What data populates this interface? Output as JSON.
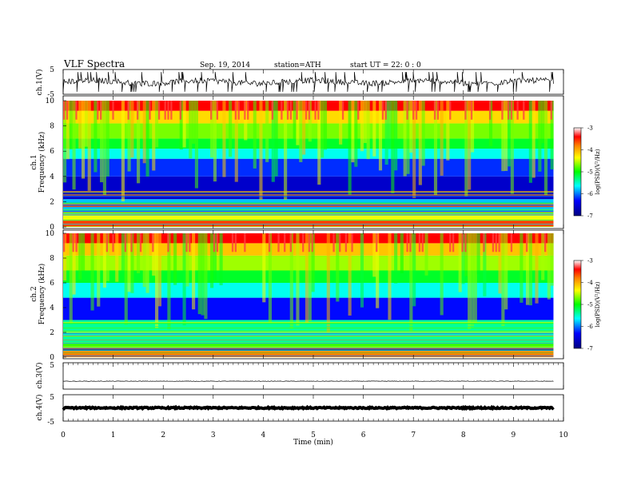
{
  "header": {
    "title": "VLF  Spectra",
    "date": "Sep. 19, 2014",
    "station": "station=ATH",
    "start": "start  UT  =   22: 0  : 0"
  },
  "colors": {
    "low": "#000080",
    "blue": "#0000ff",
    "cyan": "#00ffff",
    "green": "#00ff00",
    "yellow": "#ffff00",
    "orange": "#ff8000",
    "red": "#ff0000",
    "high": "#ffffff"
  },
  "chart_data": [
    {
      "type": "line",
      "panel": "ch1-waveform",
      "ylabel": "ch.1(V)",
      "yticks": [
        "5",
        "-5"
      ],
      "ylim": [
        -5,
        5
      ],
      "xlim": [
        0,
        10
      ],
      "series": [
        {
          "x": [
            0,
            9.8
          ],
          "mean": 0,
          "noise_amplitude": 1.2
        }
      ]
    },
    {
      "type": "heatmap",
      "panel": "ch1-spectrogram",
      "ylabel": "ch.1\nFrequency (kHz)",
      "yticks": [
        "0",
        "2",
        "4",
        "6",
        "8",
        "10"
      ],
      "ylim": [
        0,
        10
      ],
      "xlim": [
        0,
        10
      ],
      "data_xmax": 9.8,
      "colorbar": {
        "label": "log(PSD)(V²/Hz)",
        "ticks": [
          "-3",
          "-4",
          "-5",
          "-6",
          "-7"
        ],
        "range": [
          -7,
          -3
        ]
      },
      "bands": [
        {
          "from_khz": 0,
          "to_khz": 0.5,
          "log_psd": -3.6
        },
        {
          "from_khz": 0.5,
          "to_khz": 1.0,
          "log_psd": -4.4
        },
        {
          "from_khz": 1.0,
          "to_khz": 2.2,
          "log_psd": -5.8
        },
        {
          "from_khz": 2.2,
          "to_khz": 4.0,
          "log_psd": -6.6
        },
        {
          "from_khz": 4.0,
          "to_khz": 5.4,
          "log_psd": -6.2
        },
        {
          "from_khz": 5.4,
          "to_khz": 6.2,
          "log_psd": -5.6
        },
        {
          "from_khz": 6.2,
          "to_khz": 7.0,
          "log_psd": -5.1
        },
        {
          "from_khz": 7.0,
          "to_khz": 8.2,
          "log_psd": -4.7
        },
        {
          "from_khz": 8.2,
          "to_khz": 9.2,
          "log_psd": -4.2
        },
        {
          "from_khz": 9.2,
          "to_khz": 10,
          "log_psd": -3.4
        }
      ]
    },
    {
      "type": "heatmap",
      "panel": "ch2-spectrogram",
      "ylabel": "ch.2\nFrequency (kHz)",
      "yticks": [
        "0",
        "2",
        "4",
        "6",
        "8",
        "10"
      ],
      "ylim": [
        0,
        10
      ],
      "xlim": [
        0,
        10
      ],
      "data_xmax": 9.8,
      "colorbar": {
        "label": "log(PSD)(V²/Hz)",
        "ticks": [
          "-3",
          "-4",
          "-5",
          "-6",
          "-7"
        ],
        "range": [
          -7,
          -3
        ]
      },
      "bands": [
        {
          "from_khz": 0,
          "to_khz": 0.5,
          "log_psd": -3.8
        },
        {
          "from_khz": 0.5,
          "to_khz": 1.2,
          "log_psd": -4.8
        },
        {
          "from_khz": 1.2,
          "to_khz": 3.0,
          "log_psd": -5.4
        },
        {
          "from_khz": 3.0,
          "to_khz": 4.8,
          "log_psd": -6.3
        },
        {
          "from_khz": 4.8,
          "to_khz": 6.0,
          "log_psd": -5.6
        },
        {
          "from_khz": 6.0,
          "to_khz": 7.0,
          "log_psd": -5.1
        },
        {
          "from_khz": 7.0,
          "to_khz": 8.2,
          "log_psd": -4.6
        },
        {
          "from_khz": 8.2,
          "to_khz": 9.2,
          "log_psd": -4.1
        },
        {
          "from_khz": 9.2,
          "to_khz": 10,
          "log_psd": -3.4
        }
      ]
    },
    {
      "type": "line",
      "panel": "ch3-waveform",
      "ylabel": "ch.3(V)",
      "yticks": [
        "5"
      ],
      "ylim": [
        -5,
        5
      ],
      "xlim": [
        0,
        10
      ],
      "series": [
        {
          "x": [
            0,
            9.8
          ],
          "mean": -2.0,
          "noise_amplitude": 0.08
        }
      ]
    },
    {
      "type": "line",
      "panel": "ch4-waveform",
      "ylabel": "ch.4(V)",
      "yticks": [
        "5",
        "-5"
      ],
      "ylim": [
        -5,
        5
      ],
      "xlim": [
        0,
        10
      ],
      "series": [
        {
          "x": [
            0,
            9.8
          ],
          "mean": 0,
          "noise_amplitude": 0.25
        }
      ]
    }
  ],
  "xaxis": {
    "label": "Time  (min)",
    "ticks": [
      "0",
      "1",
      "2",
      "3",
      "4",
      "5",
      "6",
      "7",
      "8",
      "9",
      "10"
    ]
  }
}
